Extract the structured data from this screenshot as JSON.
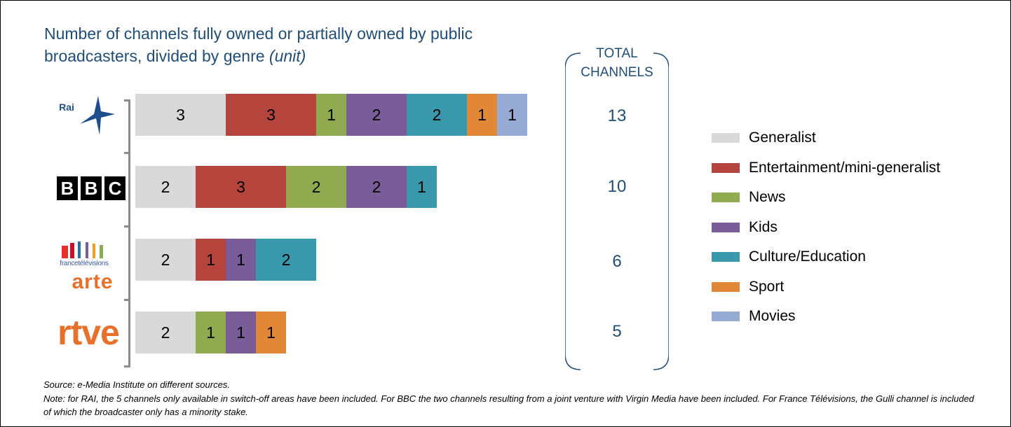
{
  "title": {
    "main": "Number of channels fully owned or partially owned by public broadcasters, divided by genre",
    "unit": "(unit)"
  },
  "totals_header": [
    "TOTAL",
    "CHANNELS"
  ],
  "logos": {
    "rai": "Rai",
    "bbc": [
      "B",
      "B",
      "C"
    ],
    "france": "francetélévisions",
    "arte": "arte",
    "rtve": "rtve"
  },
  "colors": {
    "Generalist": "#d9d9d9",
    "Entertainment/mini-generalist": "#b5443d",
    "News": "#8faa4f",
    "Kids": "#7a5c99",
    "Culture/Education": "#3a98ad",
    "Sport": "#e08838",
    "Movies": "#96abd3"
  },
  "chart_data": {
    "type": "bar",
    "orientation": "horizontal",
    "stacked": true,
    "categories": [
      "Rai",
      "BBC",
      "France Télévisions / arte",
      "rtve"
    ],
    "series": [
      {
        "name": "Generalist",
        "values": [
          3,
          2,
          2,
          2
        ]
      },
      {
        "name": "Entertainment/mini-generalist",
        "values": [
          3,
          3,
          1,
          0
        ]
      },
      {
        "name": "News",
        "values": [
          1,
          2,
          0,
          1
        ]
      },
      {
        "name": "Kids",
        "values": [
          2,
          2,
          1,
          1
        ]
      },
      {
        "name": "Culture/Education",
        "values": [
          2,
          1,
          2,
          0
        ]
      },
      {
        "name": "Sport",
        "values": [
          1,
          0,
          0,
          1
        ]
      },
      {
        "name": "Movies",
        "values": [
          1,
          0,
          0,
          0
        ]
      }
    ],
    "totals": [
      13,
      10,
      6,
      5
    ],
    "legend_position": "right",
    "grid": false
  },
  "legend": [
    "Generalist",
    "Entertainment/mini-generalist",
    "News",
    "Kids",
    "Culture/Education",
    "Sport",
    "Movies"
  ],
  "source": "Source: e-Media Institute on different sources.",
  "note": "Note: for RAI, the 5 channels only available in switch-off areas have been included. For BBC the two channels resulting from a joint venture with Virgin Media have been included. For France Télévisions, the Gulli channel is included of which the broadcaster only has a minority stake."
}
